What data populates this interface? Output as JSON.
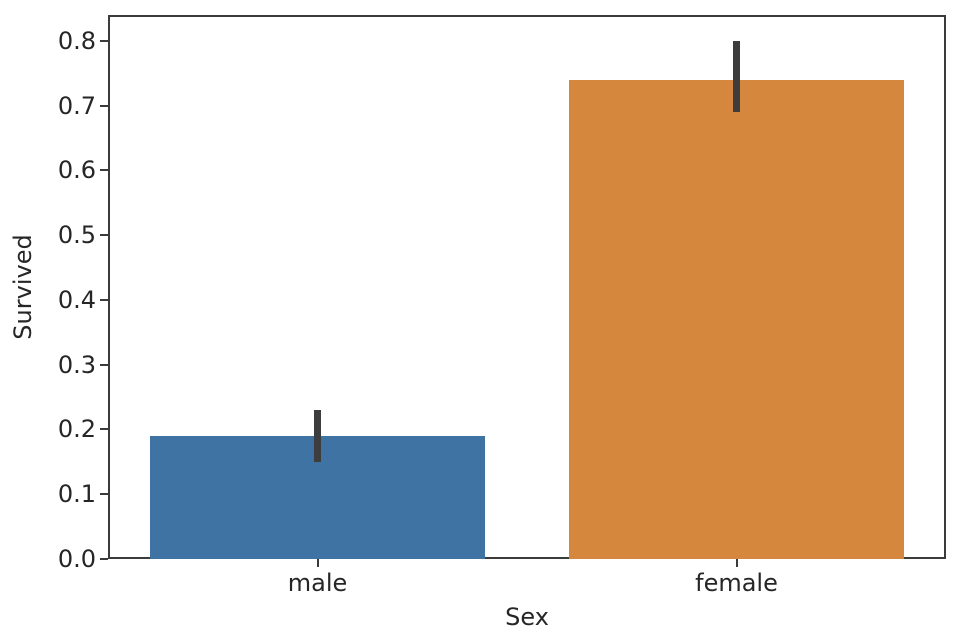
{
  "chart_data": {
    "type": "bar",
    "title": "",
    "xlabel": "Sex",
    "ylabel": "Survived",
    "categories": [
      "male",
      "female"
    ],
    "values": [
      0.19,
      0.74
    ],
    "error_bars": [
      [
        0.15,
        0.23
      ],
      [
        0.69,
        0.8
      ]
    ],
    "bar_colors": [
      "#3E73A4",
      "#D5873E"
    ],
    "error_color": "#3D3D3D",
    "axis_color": "#3B3B3B",
    "text_color": "#262626",
    "background_color": "#FFFFFF",
    "ylim": [
      0,
      0.84
    ],
    "yticks": [
      0.0,
      0.1,
      0.2,
      0.3,
      0.4,
      0.5,
      0.6,
      0.7,
      0.8
    ],
    "ytick_labels": [
      "0.0",
      "0.1",
      "0.2",
      "0.3",
      "0.4",
      "0.5",
      "0.6",
      "0.7",
      "0.8"
    ],
    "bar_width_fraction": 0.8,
    "grid": false,
    "legend": null
  }
}
